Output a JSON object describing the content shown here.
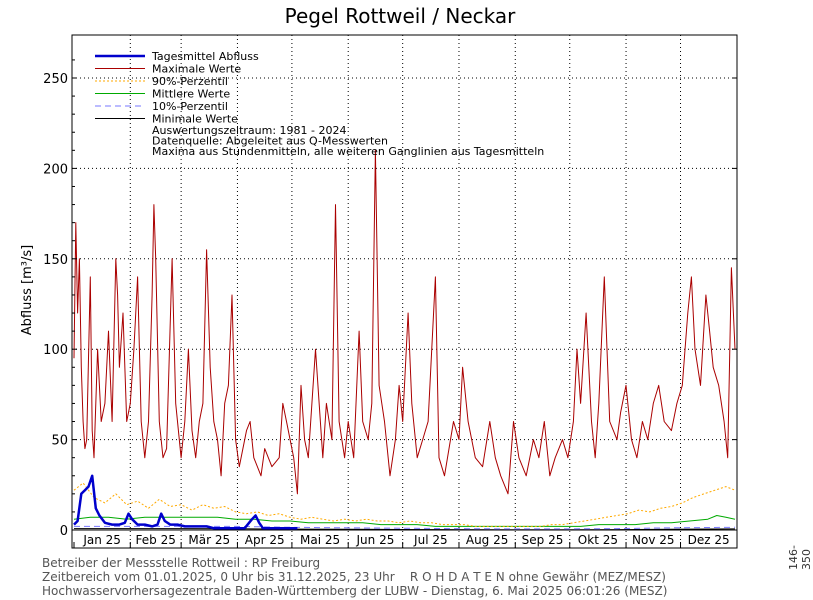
{
  "chart_data": {
    "type": "line",
    "title": "Pegel Rottweil / Neckar",
    "ylabel": "Abfluss [m³/s]",
    "xlabel": "",
    "ylim": [
      0,
      270
    ],
    "y_ticks": [
      0,
      50,
      100,
      150,
      200,
      250
    ],
    "grid": true,
    "legend_position": "top-left",
    "months": [
      "Jan 25",
      "Feb 25",
      "Mär 25",
      "Apr 25",
      "Mai 25",
      "Jun 25",
      "Jul 25",
      "Aug 25",
      "Sep 25",
      "Okt 25",
      "Nov 25",
      "Dez 25"
    ],
    "x_range_days": [
      1,
      365
    ],
    "series": [
      {
        "name": "Tagesmittel Abfluss",
        "color": "#0000cc",
        "style": "solid-thick",
        "points": [
          [
            1,
            3
          ],
          [
            3,
            5
          ],
          [
            5,
            20
          ],
          [
            7,
            22
          ],
          [
            9,
            24
          ],
          [
            11,
            30
          ],
          [
            13,
            12
          ],
          [
            15,
            8
          ],
          [
            18,
            4
          ],
          [
            22,
            3
          ],
          [
            26,
            3
          ],
          [
            29,
            4
          ],
          [
            31,
            9
          ],
          [
            33,
            6
          ],
          [
            36,
            3
          ],
          [
            40,
            3
          ],
          [
            44,
            2
          ],
          [
            47,
            3
          ],
          [
            49,
            9
          ],
          [
            51,
            5
          ],
          [
            54,
            3
          ],
          [
            58,
            3
          ],
          [
            62,
            2
          ],
          [
            66,
            2
          ],
          [
            70,
            2
          ],
          [
            74,
            2
          ],
          [
            78,
            1
          ],
          [
            82,
            1
          ],
          [
            86,
            1
          ],
          [
            90,
            1
          ],
          [
            95,
            1
          ],
          [
            99,
            6
          ],
          [
            101,
            8
          ],
          [
            103,
            4
          ],
          [
            105,
            1
          ],
          [
            110,
            1
          ],
          [
            115,
            1
          ],
          [
            120,
            1
          ],
          [
            124,
            1
          ]
        ]
      },
      {
        "name": "Maximale Werte",
        "color": "#aa0000",
        "style": "solid",
        "points": [
          [
            1,
            95
          ],
          [
            2,
            170
          ],
          [
            3,
            120
          ],
          [
            4,
            150
          ],
          [
            5,
            90
          ],
          [
            6,
            60
          ],
          [
            7,
            45
          ],
          [
            8,
            50
          ],
          [
            10,
            140
          ],
          [
            11,
            55
          ],
          [
            12,
            40
          ],
          [
            14,
            100
          ],
          [
            16,
            60
          ],
          [
            18,
            70
          ],
          [
            20,
            110
          ],
          [
            22,
            60
          ],
          [
            24,
            150
          ],
          [
            25,
            130
          ],
          [
            26,
            90
          ],
          [
            28,
            120
          ],
          [
            30,
            60
          ],
          [
            32,
            70
          ],
          [
            34,
            100
          ],
          [
            36,
            140
          ],
          [
            38,
            60
          ],
          [
            40,
            40
          ],
          [
            42,
            60
          ],
          [
            44,
            130
          ],
          [
            45,
            180
          ],
          [
            46,
            150
          ],
          [
            48,
            60
          ],
          [
            50,
            40
          ],
          [
            52,
            45
          ],
          [
            55,
            150
          ],
          [
            57,
            70
          ],
          [
            60,
            40
          ],
          [
            62,
            60
          ],
          [
            64,
            100
          ],
          [
            66,
            55
          ],
          [
            68,
            40
          ],
          [
            70,
            60
          ],
          [
            72,
            70
          ],
          [
            74,
            155
          ],
          [
            76,
            90
          ],
          [
            78,
            60
          ],
          [
            80,
            50
          ],
          [
            82,
            30
          ],
          [
            84,
            70
          ],
          [
            86,
            80
          ],
          [
            88,
            130
          ],
          [
            90,
            50
          ],
          [
            92,
            35
          ],
          [
            94,
            45
          ],
          [
            96,
            55
          ],
          [
            98,
            60
          ],
          [
            100,
            40
          ],
          [
            104,
            30
          ],
          [
            106,
            45
          ],
          [
            110,
            35
          ],
          [
            114,
            40
          ],
          [
            116,
            70
          ],
          [
            118,
            60
          ],
          [
            120,
            50
          ],
          [
            122,
            40
          ],
          [
            124,
            20
          ],
          [
            126,
            80
          ],
          [
            128,
            50
          ],
          [
            130,
            40
          ],
          [
            134,
            100
          ],
          [
            138,
            40
          ],
          [
            140,
            70
          ],
          [
            143,
            50
          ],
          [
            145,
            180
          ],
          [
            147,
            60
          ],
          [
            150,
            40
          ],
          [
            152,
            60
          ],
          [
            155,
            40
          ],
          [
            158,
            110
          ],
          [
            160,
            60
          ],
          [
            163,
            50
          ],
          [
            165,
            70
          ],
          [
            167,
            210
          ],
          [
            169,
            80
          ],
          [
            172,
            60
          ],
          [
            175,
            30
          ],
          [
            178,
            50
          ],
          [
            180,
            80
          ],
          [
            182,
            60
          ],
          [
            185,
            120
          ],
          [
            187,
            70
          ],
          [
            190,
            40
          ],
          [
            193,
            50
          ],
          [
            196,
            60
          ],
          [
            200,
            140
          ],
          [
            202,
            40
          ],
          [
            205,
            30
          ],
          [
            210,
            60
          ],
          [
            213,
            50
          ],
          [
            215,
            90
          ],
          [
            218,
            60
          ],
          [
            222,
            40
          ],
          [
            226,
            35
          ],
          [
            230,
            60
          ],
          [
            233,
            40
          ],
          [
            236,
            30
          ],
          [
            240,
            20
          ],
          [
            243,
            60
          ],
          [
            246,
            40
          ],
          [
            250,
            30
          ],
          [
            254,
            50
          ],
          [
            257,
            40
          ],
          [
            260,
            60
          ],
          [
            263,
            30
          ],
          [
            266,
            40
          ],
          [
            270,
            50
          ],
          [
            273,
            40
          ],
          [
            276,
            60
          ],
          [
            278,
            100
          ],
          [
            280,
            70
          ],
          [
            283,
            120
          ],
          [
            286,
            60
          ],
          [
            288,
            40
          ],
          [
            290,
            70
          ],
          [
            293,
            140
          ],
          [
            296,
            60
          ],
          [
            300,
            50
          ],
          [
            302,
            65
          ],
          [
            305,
            80
          ],
          [
            308,
            50
          ],
          [
            311,
            40
          ],
          [
            314,
            60
          ],
          [
            317,
            50
          ],
          [
            320,
            70
          ],
          [
            323,
            80
          ],
          [
            326,
            60
          ],
          [
            330,
            55
          ],
          [
            333,
            70
          ],
          [
            336,
            80
          ],
          [
            339,
            120
          ],
          [
            341,
            140
          ],
          [
            343,
            100
          ],
          [
            346,
            80
          ],
          [
            349,
            130
          ],
          [
            351,
            110
          ],
          [
            353,
            90
          ],
          [
            356,
            80
          ],
          [
            359,
            60
          ],
          [
            361,
            40
          ],
          [
            363,
            145
          ],
          [
            365,
            100
          ]
        ]
      },
      {
        "name": "90%-Perzentil",
        "color": "#ffaa00",
        "style": "dotted",
        "points": [
          [
            1,
            22
          ],
          [
            6,
            26
          ],
          [
            12,
            18
          ],
          [
            18,
            15
          ],
          [
            24,
            20
          ],
          [
            30,
            14
          ],
          [
            36,
            16
          ],
          [
            42,
            12
          ],
          [
            48,
            17
          ],
          [
            54,
            13
          ],
          [
            60,
            14
          ],
          [
            66,
            11
          ],
          [
            72,
            14
          ],
          [
            78,
            12
          ],
          [
            84,
            13
          ],
          [
            90,
            10
          ],
          [
            96,
            9
          ],
          [
            102,
            10
          ],
          [
            108,
            8
          ],
          [
            114,
            9
          ],
          [
            120,
            7
          ],
          [
            126,
            6
          ],
          [
            132,
            7
          ],
          [
            138,
            6
          ],
          [
            144,
            5
          ],
          [
            150,
            6
          ],
          [
            156,
            5
          ],
          [
            162,
            6
          ],
          [
            168,
            5
          ],
          [
            174,
            5
          ],
          [
            180,
            4
          ],
          [
            186,
            5
          ],
          [
            192,
            4
          ],
          [
            198,
            4
          ],
          [
            204,
            3
          ],
          [
            210,
            3
          ],
          [
            216,
            3
          ],
          [
            222,
            2
          ],
          [
            228,
            2
          ],
          [
            234,
            2
          ],
          [
            240,
            2
          ],
          [
            246,
            2
          ],
          [
            252,
            2
          ],
          [
            258,
            2
          ],
          [
            264,
            3
          ],
          [
            270,
            3
          ],
          [
            276,
            4
          ],
          [
            282,
            5
          ],
          [
            288,
            6
          ],
          [
            294,
            7
          ],
          [
            300,
            8
          ],
          [
            306,
            9
          ],
          [
            312,
            11
          ],
          [
            318,
            10
          ],
          [
            324,
            12
          ],
          [
            330,
            13
          ],
          [
            336,
            15
          ],
          [
            342,
            18
          ],
          [
            348,
            20
          ],
          [
            354,
            22
          ],
          [
            360,
            24
          ],
          [
            365,
            22
          ]
        ]
      },
      {
        "name": "Mittlere Werte",
        "color": "#00aa00",
        "style": "solid",
        "points": [
          [
            1,
            6
          ],
          [
            10,
            7
          ],
          [
            20,
            7
          ],
          [
            30,
            6
          ],
          [
            40,
            7
          ],
          [
            50,
            7
          ],
          [
            60,
            7
          ],
          [
            70,
            7
          ],
          [
            80,
            7
          ],
          [
            90,
            6
          ],
          [
            100,
            6
          ],
          [
            110,
            5
          ],
          [
            120,
            5
          ],
          [
            130,
            4
          ],
          [
            140,
            4
          ],
          [
            150,
            4
          ],
          [
            160,
            4
          ],
          [
            170,
            3
          ],
          [
            180,
            3
          ],
          [
            190,
            3
          ],
          [
            200,
            2
          ],
          [
            210,
            2
          ],
          [
            220,
            2
          ],
          [
            230,
            2
          ],
          [
            240,
            2
          ],
          [
            250,
            2
          ],
          [
            260,
            2
          ],
          [
            270,
            2
          ],
          [
            280,
            2
          ],
          [
            290,
            3
          ],
          [
            300,
            3
          ],
          [
            310,
            3
          ],
          [
            320,
            4
          ],
          [
            330,
            4
          ],
          [
            340,
            5
          ],
          [
            350,
            6
          ],
          [
            355,
            8
          ],
          [
            360,
            7
          ],
          [
            365,
            6
          ]
        ]
      },
      {
        "name": "10%-Perzentil",
        "color": "#7777ff",
        "style": "dashed",
        "points": [
          [
            1,
            2
          ],
          [
            30,
            2
          ],
          [
            60,
            2
          ],
          [
            90,
            2
          ],
          [
            120,
            1.5
          ],
          [
            150,
            1.2
          ],
          [
            180,
            1
          ],
          [
            210,
            0.8
          ],
          [
            240,
            0.6
          ],
          [
            270,
            0.6
          ],
          [
            300,
            0.8
          ],
          [
            330,
            1.2
          ],
          [
            365,
            1.5
          ]
        ]
      },
      {
        "name": "Minimale Werte",
        "color": "#000000",
        "style": "solid",
        "points": [
          [
            1,
            0.8
          ],
          [
            30,
            0.8
          ],
          [
            60,
            0.8
          ],
          [
            90,
            0.7
          ],
          [
            120,
            0.5
          ],
          [
            150,
            0.4
          ],
          [
            180,
            0.3
          ],
          [
            210,
            0.2
          ],
          [
            240,
            0.1
          ],
          [
            270,
            0.1
          ],
          [
            300,
            0.2
          ],
          [
            330,
            0.4
          ],
          [
            365,
            0.6
          ]
        ]
      }
    ],
    "annotations": [
      "Auswertungszeitraum: 1981 - 2024",
      "Datenquelle: Abgeleitet aus Q-Messwerten",
      "Maxima aus Stundenmitteln, alle weiteren Ganglinien aus Tagesmitteln"
    ]
  },
  "footer": {
    "line1": "Betreiber der Messstelle Rottweil : RP Freiburg",
    "line2": "Zeitbereich vom 01.01.2025, 0 Uhr bis 31.12.2025, 23 Uhr    R O H D A T E N ohne Gewähr (MEZ/MESZ)",
    "line3": "Hochwasservorhersagezentrale Baden-Württemberg der LUBW - Dienstag, 6. Mai 2025 06:01:26 (MESZ)"
  },
  "side_code": "146-350"
}
